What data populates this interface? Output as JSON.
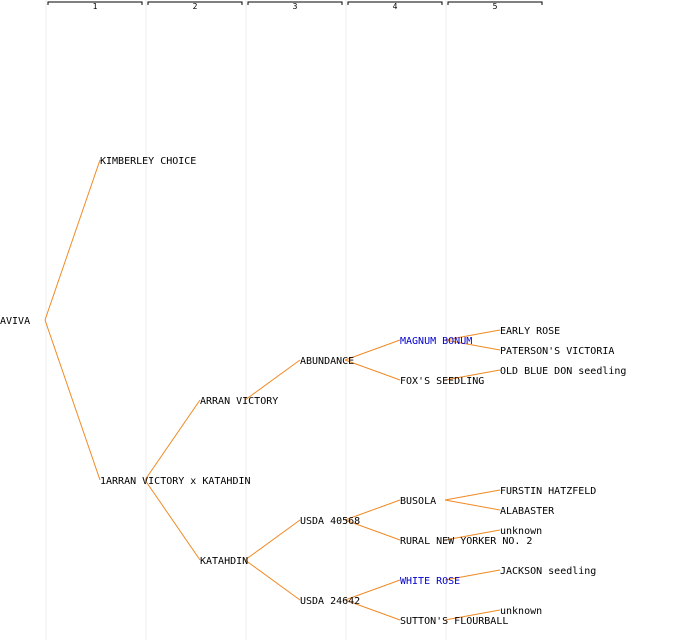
{
  "colors": {
    "edge": "#f08a24",
    "text": "#000000",
    "highlight": "#0000cc",
    "grid": "#ececec"
  },
  "generations": [
    "1",
    "2",
    "3",
    "4",
    "5"
  ],
  "tree": {
    "label": "AVIVA",
    "children": [
      {
        "label": "KIMBERLEY CHOICE"
      },
      {
        "label": "1ARRAN VICTORY x KATAHDIN",
        "children": [
          {
            "label": "ARRAN VICTORY",
            "children": [
              {
                "label": "ABUNDANCE",
                "children": [
                  {
                    "label": "MAGNUM BONUM",
                    "highlight": true,
                    "children": [
                      {
                        "label": "EARLY ROSE"
                      },
                      {
                        "label": "PATERSON'S VICTORIA"
                      }
                    ]
                  },
                  {
                    "label": "FOX'S SEEDLING",
                    "children": [
                      {
                        "label": "OLD BLUE DON seedling"
                      }
                    ]
                  }
                ]
              }
            ]
          },
          {
            "label": "KATAHDIN",
            "children": [
              {
                "label": "USDA 40568",
                "children": [
                  {
                    "label": "BUSOLA",
                    "children": [
                      {
                        "label": "FURSTIN HATZFELD"
                      },
                      {
                        "label": "ALABASTER"
                      }
                    ]
                  },
                  {
                    "label": "RURAL NEW YORKER NO. 2",
                    "children": [
                      {
                        "label": "unknown"
                      }
                    ]
                  }
                ]
              },
              {
                "label": "USDA 24642",
                "children": [
                  {
                    "label": "WHITE ROSE",
                    "highlight": true,
                    "children": [
                      {
                        "label": "JACKSON seedling"
                      }
                    ]
                  },
                  {
                    "label": "SUTTON'S FLOURBALL",
                    "children": [
                      {
                        "label": "unknown"
                      }
                    ]
                  }
                ]
              }
            ]
          }
        ]
      }
    ]
  }
}
